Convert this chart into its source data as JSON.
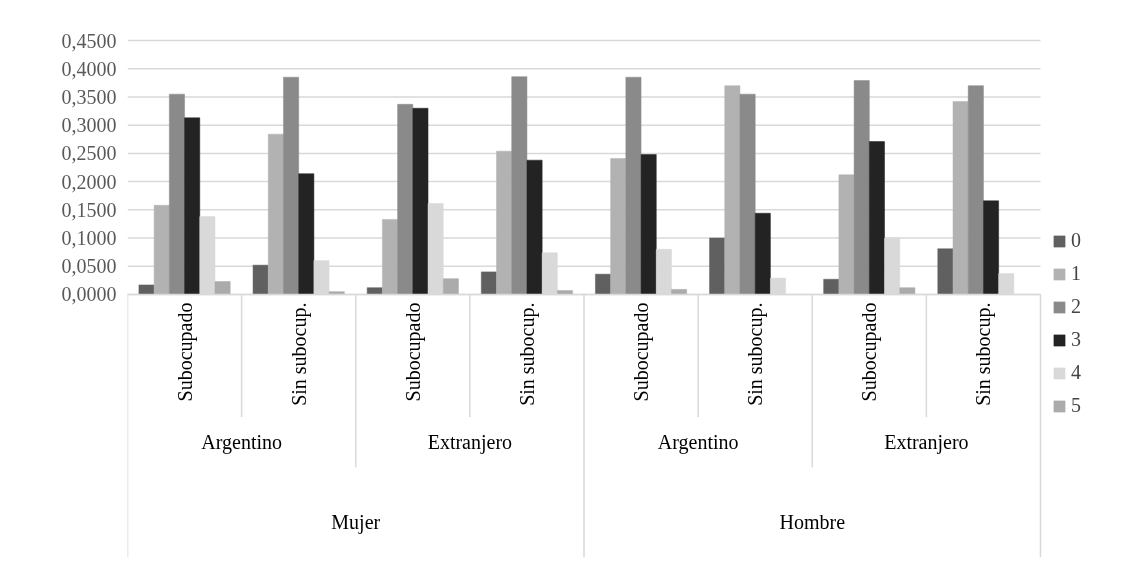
{
  "chart_data": {
    "type": "bar",
    "categories": [
      "Subocupado",
      "Sin subocup.",
      "Subocupado",
      "Sin subocup.",
      "Subocupado",
      "Sin subocup.",
      "Subocupado",
      "Sin subocup."
    ],
    "annotations": [
      "Argentino",
      "Extranjero",
      "Argentino",
      "Extranjero",
      "Mujer",
      "Hombre"
    ],
    "series": [
      {
        "name": "0",
        "color": "#606060",
        "values": [
          0.017,
          0.052,
          0.012,
          0.04,
          0.036,
          0.1,
          0.027,
          0.081
        ]
      },
      {
        "name": "1",
        "color": "#b2b2b2",
        "values": [
          0.158,
          0.284,
          0.133,
          0.254,
          0.241,
          0.37,
          0.212,
          0.342
        ]
      },
      {
        "name": "2",
        "color": "#8a8a8a",
        "values": [
          0.355,
          0.385,
          0.337,
          0.386,
          0.385,
          0.355,
          0.379,
          0.37
        ]
      },
      {
        "name": "3",
        "color": "#232323",
        "values": [
          0.313,
          0.214,
          0.33,
          0.238,
          0.248,
          0.144,
          0.271,
          0.166
        ]
      },
      {
        "name": "4",
        "color": "#d9d9d9",
        "values": [
          0.138,
          0.06,
          0.161,
          0.074,
          0.08,
          0.029,
          0.1,
          0.037
        ]
      },
      {
        "name": "5",
        "color": "#ababab",
        "values": [
          0.023,
          0.005,
          0.028,
          0.007,
          0.009,
          null,
          0.012,
          null
        ]
      }
    ],
    "ylim": [
      0,
      0.45
    ],
    "yticks": [
      {
        "value": 0,
        "label": "0,0000"
      },
      {
        "value": 0.05,
        "label": "0,0500"
      },
      {
        "value": 0.1,
        "label": "0,1000"
      },
      {
        "value": 0.15,
        "label": "0,1500"
      },
      {
        "value": 0.2,
        "label": "0,2000"
      },
      {
        "value": 0.25,
        "label": "0,2500"
      },
      {
        "value": 0.3,
        "label": "0,3000"
      },
      {
        "value": 0.35,
        "label": "0,3500"
      },
      {
        "value": 0.4,
        "label": "0,4000"
      },
      {
        "value": 0.45,
        "label": "0,4500"
      }
    ],
    "grid": "y",
    "legend": "right"
  }
}
